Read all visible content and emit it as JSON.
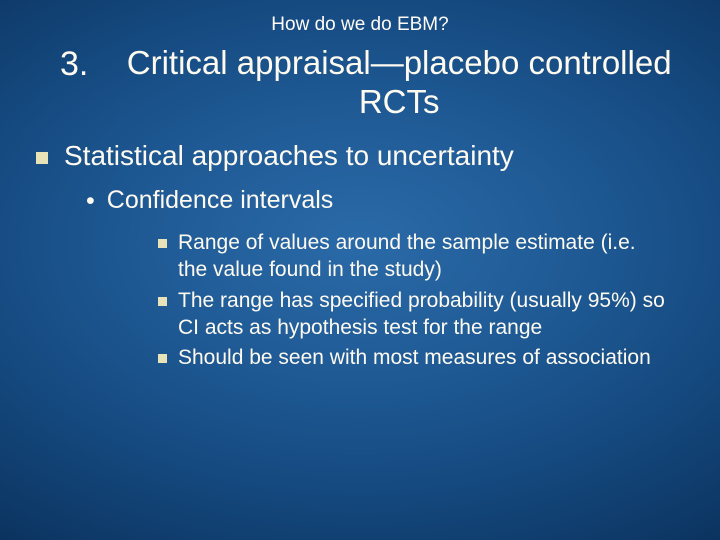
{
  "colors": {
    "background_gradient": [
      "#2a6aa8",
      "#1f5a95",
      "#154a80",
      "#0d3765",
      "#06254a",
      "#021633"
    ],
    "text": "#fefaf0",
    "bullet": "#e7e2b8"
  },
  "typography": {
    "family": "Verdana",
    "supertitle_size": 19,
    "title_size": 33,
    "lvl1_size": 28,
    "lvl2_size": 25,
    "lvl3_size": 21
  },
  "supertitle": "How do we do EBM?",
  "title_number": "3.",
  "title_text": "Critical appraisal—placebo controlled RCTs",
  "lvl1_text": "Statistical approaches to uncertainty",
  "lvl2_bullet_char": "•",
  "lvl2_text": "Confidence intervals",
  "lvl3_items": [
    "Range of values around the sample estimate (i.e. the value found in the study)",
    "The range has specified probability (usually 95%) so CI acts as hypothesis test for the range",
    "Should be seen with most measures of association"
  ]
}
